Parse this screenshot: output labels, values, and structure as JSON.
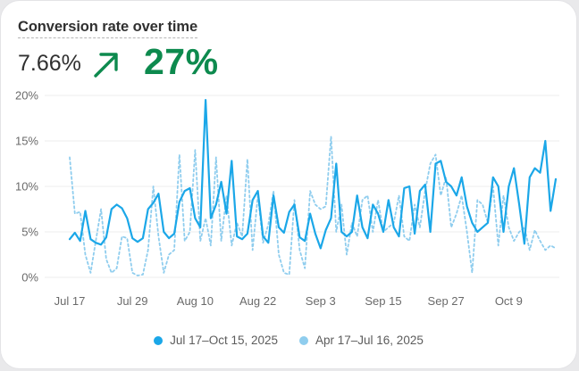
{
  "card": {
    "title": "Conversion rate over time",
    "metric_value": "7.66%",
    "change_value": "27%",
    "change_icon": "arrow-up-right-icon",
    "change_color": "#0d8a4e"
  },
  "chart_data": {
    "type": "line",
    "title": "Conversion rate over time",
    "xlabel": "",
    "ylabel": "",
    "ylim": [
      0,
      20
    ],
    "y_ticks": [
      "0%",
      "5%",
      "10%",
      "15%",
      "20%"
    ],
    "x_tick_labels": [
      "Jul 17",
      "Jul 29",
      "Aug 10",
      "Aug 22",
      "Sep 3",
      "Sep 15",
      "Sep 27",
      "Oct 9"
    ],
    "x_tick_index": [
      0,
      12,
      24,
      36,
      48,
      60,
      72,
      84
    ],
    "grid": true,
    "legend_position": "bottom",
    "series": [
      {
        "name": "Jul 17–Oct 15, 2025",
        "color": "#1ba7e8",
        "style": "solid",
        "values": [
          4.2,
          4.9,
          4.0,
          7.3,
          4.2,
          3.8,
          3.6,
          4.4,
          7.5,
          8.0,
          7.6,
          6.5,
          4.3,
          3.9,
          4.3,
          7.5,
          8.2,
          9.2,
          5.0,
          4.3,
          4.8,
          8.3,
          9.5,
          9.8,
          6.5,
          5.5,
          19.5,
          6.5,
          8.0,
          10.5,
          7.0,
          12.8,
          4.5,
          4.2,
          4.8,
          8.5,
          9.5,
          4.5,
          3.8,
          9.0,
          5.5,
          4.9,
          7.2,
          8.0,
          4.4,
          4.0,
          7.0,
          4.8,
          3.2,
          5.2,
          6.5,
          12.5,
          5.0,
          4.5,
          5.0,
          9.0,
          5.5,
          4.3,
          8.0,
          7.0,
          5.0,
          8.5,
          5.5,
          4.5,
          9.8,
          10.0,
          4.8,
          9.5,
          10.2,
          5.0,
          12.5,
          12.8,
          10.5,
          10.0,
          9.0,
          11.0,
          7.8,
          6.0,
          5.0,
          5.5,
          6.0,
          11.0,
          10.0,
          5.0,
          10.0,
          12.0,
          8.0,
          3.7,
          11.0,
          12.0,
          11.5,
          15.0,
          7.3,
          10.8
        ]
      },
      {
        "name": "Apr 17–Jul 16, 2025",
        "color": "#8fcdee",
        "style": "dashed",
        "values": [
          13.2,
          7.0,
          7.2,
          2.5,
          0.5,
          4.0,
          7.5,
          2.0,
          0.5,
          1.0,
          4.5,
          4.3,
          0.5,
          0.2,
          0.3,
          3.0,
          10.0,
          4.5,
          0.5,
          2.5,
          3.0,
          13.5,
          4.0,
          5.0,
          14.0,
          4.0,
          6.5,
          3.5,
          13.2,
          4.0,
          9.0,
          3.5,
          6.0,
          4.5,
          13.0,
          3.0,
          9.0,
          3.8,
          5.8,
          9.5,
          2.5,
          0.5,
          0.3,
          8.5,
          3.0,
          1.0,
          9.5,
          8.0,
          7.5,
          7.8,
          15.5,
          5.0,
          8.0,
          2.5,
          6.0,
          4.5,
          8.5,
          9.0,
          5.0,
          8.5,
          5.0,
          5.5,
          6.0,
          9.0,
          4.5,
          4.0,
          8.0,
          5.5,
          9.5,
          12.5,
          13.5,
          9.0,
          11.0,
          5.5,
          7.0,
          9.0,
          5.0,
          0.5,
          8.5,
          8.0,
          6.0,
          10.0,
          3.5,
          9.0,
          5.5,
          4.0,
          5.0,
          5.5,
          3.0,
          5.2,
          4.0,
          3.0,
          3.5,
          3.2
        ]
      }
    ]
  }
}
